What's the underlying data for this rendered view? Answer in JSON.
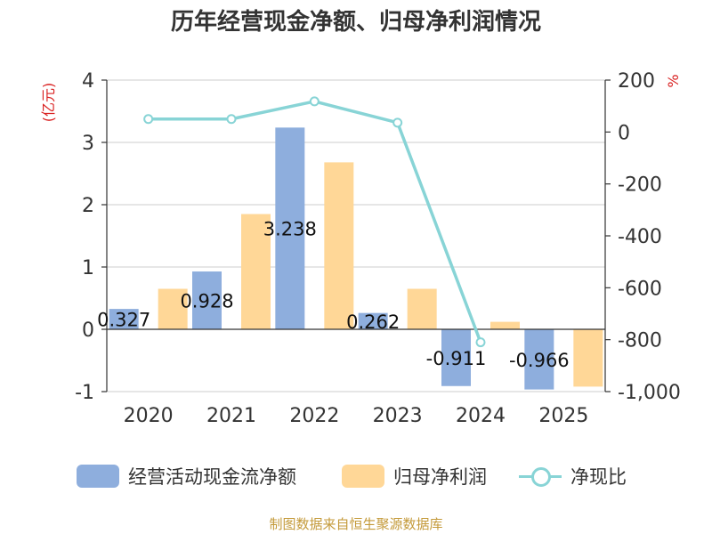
{
  "chart_data": {
    "type": "bar",
    "title": "历年经营现金净额、归母净利润情况",
    "categories": [
      "2020",
      "2021",
      "2022",
      "2023",
      "2024",
      "2025"
    ],
    "series": [
      {
        "name": "经营活动现金流净额",
        "axis": "left",
        "color": "#8eaedd",
        "values": [
          0.327,
          0.928,
          3.238,
          0.262,
          -0.911,
          -0.966
        ],
        "labels": [
          "0.327",
          "0.928",
          "3.238",
          "0.262",
          "-0.911",
          "-0.966"
        ]
      },
      {
        "name": "归母净利润",
        "axis": "left",
        "color": "#ffd797",
        "values": [
          0.65,
          1.85,
          2.68,
          0.65,
          0.12,
          -0.92
        ]
      },
      {
        "name": "净现比",
        "axis": "right",
        "type": "line",
        "color": "#88d4d6",
        "values": [
          50,
          50,
          118,
          36,
          -810,
          null
        ]
      }
    ],
    "left_axis": {
      "label": "(亿元)",
      "min": -1,
      "max": 4,
      "ticks": [
        -1,
        0,
        1,
        2,
        3,
        4
      ],
      "tick_labels": [
        "-1",
        "0",
        "1",
        "2",
        "3",
        "4"
      ]
    },
    "right_axis": {
      "label": "%",
      "min": -1000,
      "max": 200,
      "ticks": [
        200,
        0,
        -200,
        -400,
        -600,
        -800,
        -1000
      ],
      "tick_labels": [
        "200",
        "0",
        "-200",
        "-400",
        "-600",
        "-800",
        "-1,000"
      ]
    },
    "grid": true,
    "legend_position": "bottom",
    "source": "制图数据来自恒生聚源数据库"
  }
}
